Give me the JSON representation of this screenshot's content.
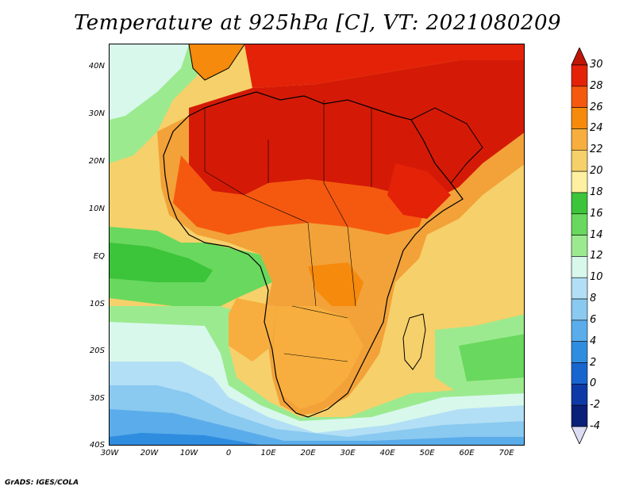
{
  "title": "Temperature at 925hPa [C], VT: 2021080209",
  "credit": "GrADS: IGES/COLA",
  "lat_labels": [
    "40N",
    "30N",
    "20N",
    "10N",
    "EQ",
    "10S",
    "20S",
    "30S",
    "40S"
  ],
  "lon_labels": [
    "30W",
    "20W",
    "10W",
    "0",
    "10E",
    "20E",
    "30E",
    "40E",
    "50E",
    "60E",
    "70E"
  ],
  "colorbar": {
    "labels": [
      "30",
      "28",
      "26",
      "24",
      "22",
      "20",
      "18",
      "16",
      "14",
      "12",
      "10",
      "8",
      "6",
      "4",
      "2",
      "0",
      "-2",
      "-4"
    ],
    "colors": [
      "#e32208",
      "#f5590f",
      "#f58a0c",
      "#f7ae3e",
      "#f6d06a",
      "#fdf0a0",
      "#3cc43a",
      "#69d85e",
      "#9cea8f",
      "#d8f8ec",
      "#b2dff5",
      "#8ac9f0",
      "#5aadea",
      "#2f8de0",
      "#1965d0",
      "#0d3aa6",
      "#0a1f78"
    ],
    "over_color": "#c01606",
    "under_color": "#dcdcf5"
  },
  "colors": {
    "hot": "#d41a06",
    "warm": "#f2a238",
    "sea_warm": "#f6d06a",
    "sea_green": "#7cd86e",
    "sea_pale": "#d8f8ec",
    "sea_blue": "#5aadea"
  }
}
